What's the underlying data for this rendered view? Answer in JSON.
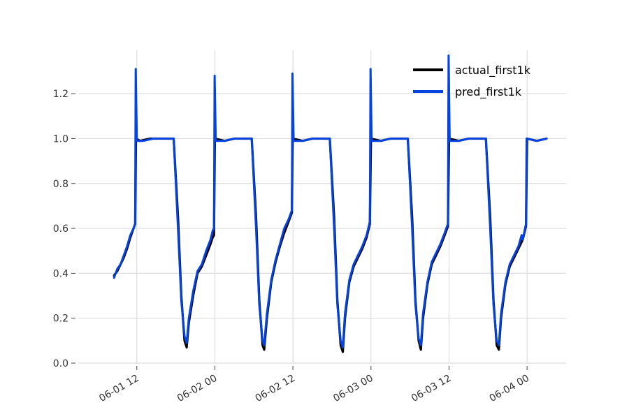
{
  "chart_data": {
    "type": "line",
    "title": "",
    "xlabel": "",
    "ylabel": "",
    "x_axis": {
      "kind": "datetime",
      "range": [
        "2024-06-01 03:00",
        "2024-06-04 06:00"
      ],
      "ticks": [
        {
          "value": "2024-06-01 12:00",
          "label": "06-01 12"
        },
        {
          "value": "2024-06-02 00:00",
          "label": "06-02 00"
        },
        {
          "value": "2024-06-02 12:00",
          "label": "06-02 12"
        },
        {
          "value": "2024-06-03 00:00",
          "label": "06-03 00"
        },
        {
          "value": "2024-06-03 12:00",
          "label": "06-03 12"
        },
        {
          "value": "2024-06-04 00:00",
          "label": "06-04 00"
        }
      ]
    },
    "y_axis": {
      "range": [
        0.0,
        1.4
      ],
      "ticks": [
        {
          "value": 0.0,
          "label": "0.0"
        },
        {
          "value": 0.2,
          "label": "0.2"
        },
        {
          "value": 0.4,
          "label": "0.4"
        },
        {
          "value": 0.6,
          "label": "0.6"
        },
        {
          "value": 0.8,
          "label": "0.8"
        },
        {
          "value": 1.0,
          "label": "1.0"
        },
        {
          "value": 1.2,
          "label": "1.2"
        }
      ]
    },
    "grid": true,
    "legend_position": "top-right",
    "series": [
      {
        "name": "actual_first1k",
        "color": "#000000",
        "points": [
          [
            "2024-06-01 08:30",
            0.39
          ],
          [
            "2024-06-01 09:00",
            0.41
          ],
          [
            "2024-06-01 09:30",
            0.44
          ],
          [
            "2024-06-01 10:00",
            0.47
          ],
          [
            "2024-06-01 10:30",
            0.51
          ],
          [
            "2024-06-01 11:00",
            0.56
          ],
          [
            "2024-06-01 11:30",
            0.6
          ],
          [
            "2024-06-01 11:45",
            0.62
          ],
          [
            "2024-06-01 11:52",
            1.0
          ],
          [
            "2024-06-01 12:30",
            0.99
          ],
          [
            "2024-06-01 14:00",
            1.0
          ],
          [
            "2024-06-01 15:30",
            1.0
          ],
          [
            "2024-06-01 17:40",
            1.0
          ],
          [
            "2024-06-01 18:20",
            0.65
          ],
          [
            "2024-06-01 18:50",
            0.3
          ],
          [
            "2024-06-01 19:20",
            0.1
          ],
          [
            "2024-06-01 19:40",
            0.07
          ],
          [
            "2024-06-01 20:00",
            0.18
          ],
          [
            "2024-06-01 20:40",
            0.3
          ],
          [
            "2024-06-01 21:20",
            0.4
          ],
          [
            "2024-06-01 22:00",
            0.43
          ],
          [
            "2024-06-01 22:40",
            0.48
          ],
          [
            "2024-06-01 23:20",
            0.53
          ],
          [
            "2024-06-01 23:40",
            0.56
          ],
          [
            "2024-06-01 23:52",
            0.57
          ],
          [
            "2024-06-02 00:00",
            1.0
          ],
          [
            "2024-06-02 01:30",
            0.99
          ],
          [
            "2024-06-02 03:00",
            1.0
          ],
          [
            "2024-06-02 05:40",
            1.0
          ],
          [
            "2024-06-02 06:20",
            0.65
          ],
          [
            "2024-06-02 06:50",
            0.28
          ],
          [
            "2024-06-02 07:20",
            0.08
          ],
          [
            "2024-06-02 07:35",
            0.06
          ],
          [
            "2024-06-02 08:00",
            0.2
          ],
          [
            "2024-06-02 08:40",
            0.36
          ],
          [
            "2024-06-02 09:20",
            0.45
          ],
          [
            "2024-06-02 10:00",
            0.52
          ],
          [
            "2024-06-02 10:40",
            0.58
          ],
          [
            "2024-06-02 11:20",
            0.63
          ],
          [
            "2024-06-02 11:50",
            0.67
          ],
          [
            "2024-06-02 11:58",
            1.0
          ],
          [
            "2024-06-02 13:30",
            0.99
          ],
          [
            "2024-06-02 15:00",
            1.0
          ],
          [
            "2024-06-02 17:40",
            1.0
          ],
          [
            "2024-06-02 18:20",
            0.65
          ],
          [
            "2024-06-02 18:50",
            0.28
          ],
          [
            "2024-06-02 19:20",
            0.08
          ],
          [
            "2024-06-02 19:40",
            0.05
          ],
          [
            "2024-06-02 20:00",
            0.2
          ],
          [
            "2024-06-02 20:40",
            0.36
          ],
          [
            "2024-06-02 21:20",
            0.43
          ],
          [
            "2024-06-02 22:00",
            0.47
          ],
          [
            "2024-06-02 22:40",
            0.51
          ],
          [
            "2024-06-02 23:20",
            0.56
          ],
          [
            "2024-06-02 23:50",
            0.62
          ],
          [
            "2024-06-03 00:00",
            1.0
          ],
          [
            "2024-06-03 01:30",
            0.99
          ],
          [
            "2024-06-03 03:00",
            1.0
          ],
          [
            "2024-06-03 05:40",
            1.0
          ],
          [
            "2024-06-03 06:20",
            0.65
          ],
          [
            "2024-06-03 06:50",
            0.28
          ],
          [
            "2024-06-03 07:20",
            0.1
          ],
          [
            "2024-06-03 07:40",
            0.06
          ],
          [
            "2024-06-03 08:00",
            0.2
          ],
          [
            "2024-06-03 08:40",
            0.35
          ],
          [
            "2024-06-03 09:20",
            0.44
          ],
          [
            "2024-06-03 10:00",
            0.48
          ],
          [
            "2024-06-03 10:40",
            0.52
          ],
          [
            "2024-06-03 11:20",
            0.57
          ],
          [
            "2024-06-03 11:50",
            0.61
          ],
          [
            "2024-06-03 12:00",
            1.0
          ],
          [
            "2024-06-03 13:30",
            0.99
          ],
          [
            "2024-06-03 15:00",
            1.0
          ],
          [
            "2024-06-03 17:40",
            1.0
          ],
          [
            "2024-06-03 18:20",
            0.65
          ],
          [
            "2024-06-03 18:50",
            0.28
          ],
          [
            "2024-06-03 19:20",
            0.08
          ],
          [
            "2024-06-03 19:40",
            0.06
          ],
          [
            "2024-06-03 20:00",
            0.2
          ],
          [
            "2024-06-03 20:40",
            0.35
          ],
          [
            "2024-06-03 21:20",
            0.43
          ],
          [
            "2024-06-03 22:00",
            0.47
          ],
          [
            "2024-06-03 22:40",
            0.51
          ],
          [
            "2024-06-03 23:20",
            0.55
          ],
          [
            "2024-06-03 23:50",
            0.61
          ],
          [
            "2024-06-04 00:00",
            1.0
          ],
          [
            "2024-06-04 01:30",
            0.99
          ],
          [
            "2024-06-04 03:00",
            1.0
          ]
        ]
      },
      {
        "name": "pred_first1k",
        "color": "#0343df",
        "points": [
          [
            "2024-06-01 08:30",
            0.38
          ],
          [
            "2024-06-01 09:00",
            0.42
          ],
          [
            "2024-06-01 09:30",
            0.44
          ],
          [
            "2024-06-01 10:00",
            0.48
          ],
          [
            "2024-06-01 10:30",
            0.52
          ],
          [
            "2024-06-01 11:00",
            0.57
          ],
          [
            "2024-06-01 11:30",
            0.6
          ],
          [
            "2024-06-01 11:45",
            0.62
          ],
          [
            "2024-06-01 11:50",
            1.31
          ],
          [
            "2024-06-01 12:00",
            0.99
          ],
          [
            "2024-06-01 13:00",
            0.99
          ],
          [
            "2024-06-01 14:30",
            1.0
          ],
          [
            "2024-06-01 17:40",
            1.0
          ],
          [
            "2024-06-01 18:20",
            0.6
          ],
          [
            "2024-06-01 18:50",
            0.28
          ],
          [
            "2024-06-01 19:20",
            0.12
          ],
          [
            "2024-06-01 19:40",
            0.09
          ],
          [
            "2024-06-01 20:00",
            0.2
          ],
          [
            "2024-06-01 20:40",
            0.32
          ],
          [
            "2024-06-01 21:20",
            0.41
          ],
          [
            "2024-06-01 22:00",
            0.44
          ],
          [
            "2024-06-01 22:40",
            0.5
          ],
          [
            "2024-06-01 23:20",
            0.55
          ],
          [
            "2024-06-01 23:40",
            0.59
          ],
          [
            "2024-06-01 23:52",
            0.6
          ],
          [
            "2024-06-01 23:58",
            1.28
          ],
          [
            "2024-06-02 00:08",
            0.99
          ],
          [
            "2024-06-02 01:30",
            0.99
          ],
          [
            "2024-06-02 03:00",
            1.0
          ],
          [
            "2024-06-02 05:40",
            1.0
          ],
          [
            "2024-06-02 06:20",
            0.6
          ],
          [
            "2024-06-02 06:50",
            0.26
          ],
          [
            "2024-06-02 07:20",
            0.1
          ],
          [
            "2024-06-02 07:35",
            0.08
          ],
          [
            "2024-06-02 08:00",
            0.22
          ],
          [
            "2024-06-02 08:40",
            0.37
          ],
          [
            "2024-06-02 09:20",
            0.46
          ],
          [
            "2024-06-02 10:00",
            0.53
          ],
          [
            "2024-06-02 10:40",
            0.6
          ],
          [
            "2024-06-02 11:20",
            0.64
          ],
          [
            "2024-06-02 11:50",
            0.68
          ],
          [
            "2024-06-02 11:56",
            1.29
          ],
          [
            "2024-06-02 12:06",
            0.99
          ],
          [
            "2024-06-02 13:30",
            0.99
          ],
          [
            "2024-06-02 15:00",
            1.0
          ],
          [
            "2024-06-02 17:40",
            1.0
          ],
          [
            "2024-06-02 18:20",
            0.6
          ],
          [
            "2024-06-02 18:50",
            0.26
          ],
          [
            "2024-06-02 19:20",
            0.1
          ],
          [
            "2024-06-02 19:40",
            0.07
          ],
          [
            "2024-06-02 20:00",
            0.22
          ],
          [
            "2024-06-02 20:40",
            0.37
          ],
          [
            "2024-06-02 21:20",
            0.44
          ],
          [
            "2024-06-02 22:00",
            0.48
          ],
          [
            "2024-06-02 22:40",
            0.52
          ],
          [
            "2024-06-02 23:20",
            0.57
          ],
          [
            "2024-06-02 23:50",
            0.63
          ],
          [
            "2024-06-02 23:56",
            1.31
          ],
          [
            "2024-06-03 00:06",
            0.99
          ],
          [
            "2024-06-03 01:30",
            0.99
          ],
          [
            "2024-06-03 03:00",
            1.0
          ],
          [
            "2024-06-03 05:40",
            1.0
          ],
          [
            "2024-06-03 06:20",
            0.6
          ],
          [
            "2024-06-03 06:50",
            0.26
          ],
          [
            "2024-06-03 07:20",
            0.11
          ],
          [
            "2024-06-03 07:40",
            0.08
          ],
          [
            "2024-06-03 08:00",
            0.22
          ],
          [
            "2024-06-03 08:40",
            0.36
          ],
          [
            "2024-06-03 09:20",
            0.45
          ],
          [
            "2024-06-03 10:00",
            0.49
          ],
          [
            "2024-06-03 10:40",
            0.53
          ],
          [
            "2024-06-03 11:20",
            0.58
          ],
          [
            "2024-06-03 11:50",
            0.62
          ],
          [
            "2024-06-03 11:56",
            1.37
          ],
          [
            "2024-06-03 12:06",
            0.99
          ],
          [
            "2024-06-03 13:30",
            0.99
          ],
          [
            "2024-06-03 15:00",
            1.0
          ],
          [
            "2024-06-03 17:40",
            1.0
          ],
          [
            "2024-06-03 18:20",
            0.6
          ],
          [
            "2024-06-03 18:50",
            0.26
          ],
          [
            "2024-06-03 19:20",
            0.1
          ],
          [
            "2024-06-03 19:40",
            0.08
          ],
          [
            "2024-06-03 20:00",
            0.22
          ],
          [
            "2024-06-03 20:40",
            0.36
          ],
          [
            "2024-06-03 21:20",
            0.44
          ],
          [
            "2024-06-03 22:00",
            0.48
          ],
          [
            "2024-06-03 22:40",
            0.52
          ],
          [
            "2024-06-03 23:10",
            0.57
          ],
          [
            "2024-06-03 23:20",
            0.55
          ],
          [
            "2024-06-03 23:50",
            0.62
          ],
          [
            "2024-06-03 23:56",
            1.0
          ],
          [
            "2024-06-04 01:30",
            0.99
          ],
          [
            "2024-06-04 03:00",
            1.0
          ]
        ]
      }
    ]
  }
}
